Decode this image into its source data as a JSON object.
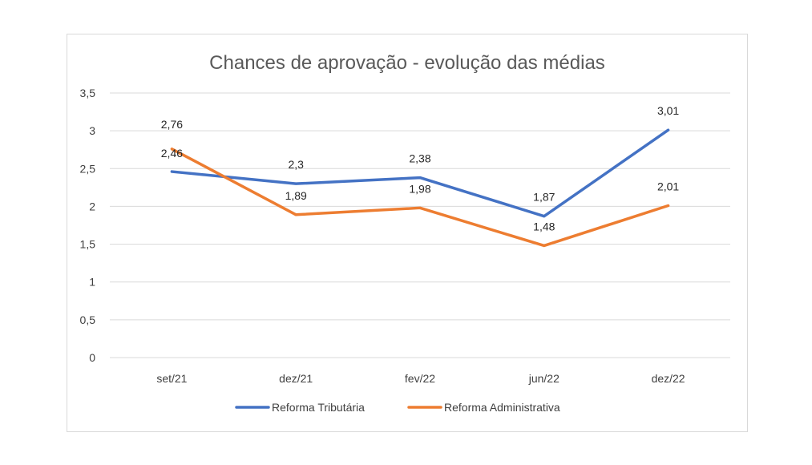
{
  "chart_data": {
    "type": "line",
    "title": "Chances de aprovação - evolução das médias",
    "xlabel": "",
    "ylabel": "",
    "categories": [
      "set/21",
      "dez/21",
      "fev/22",
      "jun/22",
      "dez/22"
    ],
    "ylim": [
      0,
      3.5
    ],
    "yticks": [
      "0",
      "0,5",
      "1",
      "1,5",
      "2",
      "2,5",
      "3",
      "3,5"
    ],
    "grid": true,
    "legend_position": "bottom",
    "series": [
      {
        "name": "Reforma Tributária",
        "color": "#4472C4",
        "values": [
          2.46,
          2.3,
          2.38,
          1.87,
          3.01
        ],
        "labels": [
          "2,46",
          "2,3",
          "2,38",
          "1,87",
          "3,01"
        ]
      },
      {
        "name": "Reforma Administrativa",
        "color": "#ED7D31",
        "values": [
          2.76,
          1.89,
          1.98,
          1.48,
          2.01
        ],
        "labels": [
          "2,76",
          "1,89",
          "1,98",
          "1,48",
          "2,01"
        ]
      }
    ]
  }
}
